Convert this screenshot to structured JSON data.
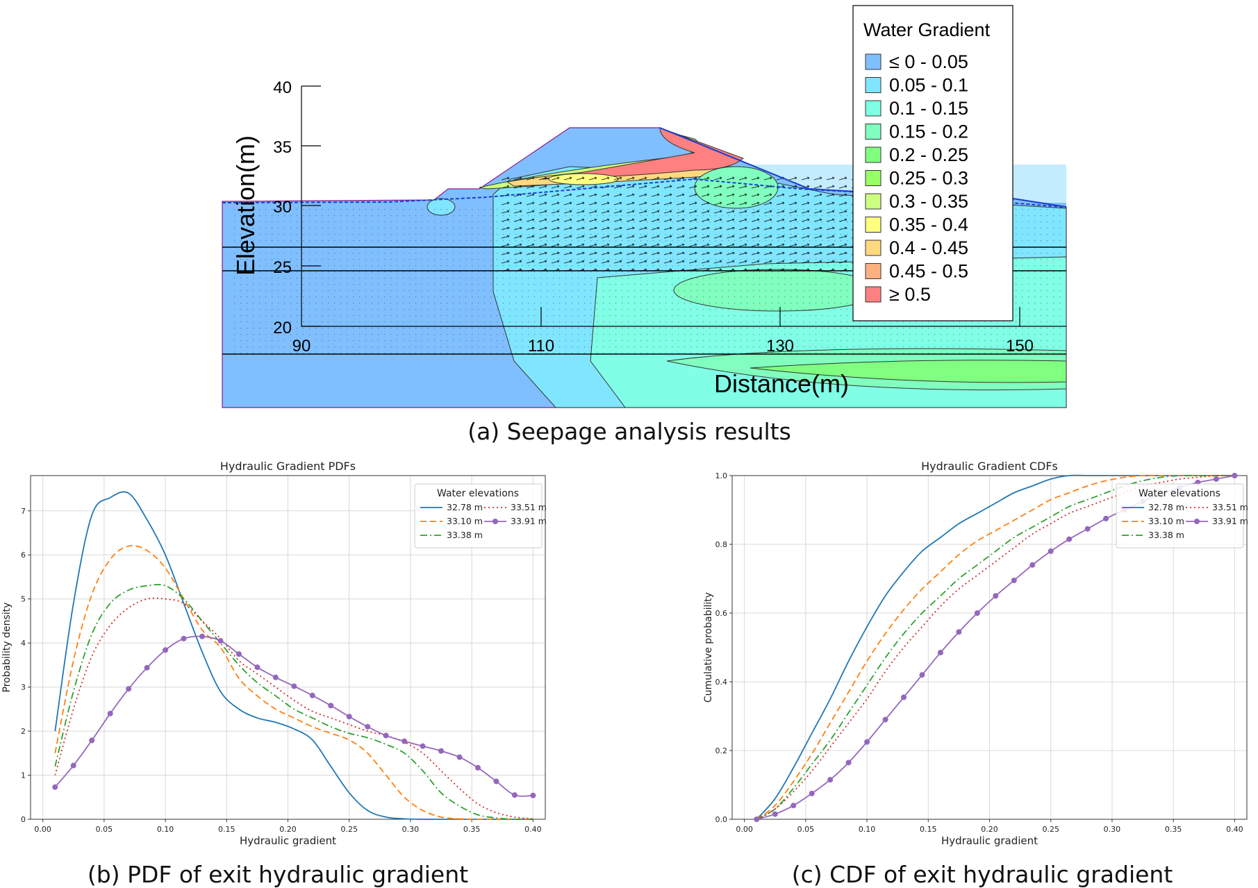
{
  "captions": {
    "a": "(a) Seepage analysis results",
    "b": "(b) PDF of exit hydraulic gradient",
    "c": "(c) CDF of exit hydraulic gradient"
  },
  "seepage": {
    "ylabel": "Elevation(m)",
    "xlabel": "Distance(m)",
    "yticks": [
      "40",
      "35",
      "30",
      "25",
      "20"
    ],
    "xticks": [
      "90",
      "110",
      "130",
      "150"
    ],
    "legend_title": "Water Gradient",
    "legend": [
      {
        "label": "≤ 0 - 0.05",
        "color": "#80bfff"
      },
      {
        "label": "0.05 - 0.1",
        "color": "#80e6ff"
      },
      {
        "label": "0.1 - 0.15",
        "color": "#80ffe6"
      },
      {
        "label": "0.15 - 0.2",
        "color": "#80ffbf"
      },
      {
        "label": "0.2 - 0.25",
        "color": "#80ff80"
      },
      {
        "label": "0.25 - 0.3",
        "color": "#99ff66"
      },
      {
        "label": "0.3 - 0.35",
        "color": "#ccff80"
      },
      {
        "label": "0.35 - 0.4",
        "color": "#ffff80"
      },
      {
        "label": "0.4 - 0.45",
        "color": "#ffd980"
      },
      {
        "label": "0.45 - 0.5",
        "color": "#ffb080"
      },
      {
        "label": "≥ 0.5",
        "color": "#ff8080"
      }
    ]
  },
  "chart_data": [
    {
      "type": "line",
      "title": "Hydraulic Gradient PDFs",
      "xlabel": "Hydraulic gradient",
      "ylabel": "Probability density",
      "xlim": [
        -0.01,
        0.41
      ],
      "ylim": [
        0,
        7.8
      ],
      "xticks": [
        "0.00",
        "0.05",
        "0.10",
        "0.15",
        "0.20",
        "0.25",
        "0.30",
        "0.35",
        "0.40"
      ],
      "yticks": [
        "0",
        "1",
        "2",
        "3",
        "4",
        "5",
        "6",
        "7"
      ],
      "legend_title": "Water elevations",
      "x": [
        0.01,
        0.025,
        0.04,
        0.055,
        0.07,
        0.085,
        0.1,
        0.115,
        0.13,
        0.145,
        0.16,
        0.175,
        0.19,
        0.205,
        0.22,
        0.235,
        0.25,
        0.265,
        0.28,
        0.295,
        0.31,
        0.325,
        0.34,
        0.355,
        0.37,
        0.385,
        0.4
      ],
      "series": [
        {
          "name": "32.78 m",
          "color": "#1f77b4",
          "dash": "",
          "marker": false,
          "values": [
            2.0,
            4.9,
            6.9,
            7.3,
            7.4,
            6.8,
            6.0,
            4.9,
            3.8,
            2.9,
            2.5,
            2.3,
            2.2,
            2.05,
            1.8,
            1.2,
            0.6,
            0.2,
            0.05,
            0.01,
            0,
            0,
            0,
            0,
            0,
            0,
            0
          ]
        },
        {
          "name": "33.10 m",
          "color": "#ff7f0e",
          "dash": "9,5",
          "marker": false,
          "values": [
            1.5,
            3.6,
            5.1,
            5.9,
            6.2,
            6.1,
            5.7,
            5.0,
            4.3,
            3.9,
            3.2,
            2.8,
            2.5,
            2.3,
            2.1,
            1.95,
            1.8,
            1.5,
            1.0,
            0.5,
            0.2,
            0.05,
            0.01,
            0,
            0,
            0,
            0
          ]
        },
        {
          "name": "33.38 m",
          "color": "#2ca02c",
          "dash": "10,4,2,4",
          "marker": false,
          "values": [
            1.2,
            2.9,
            4.2,
            4.9,
            5.2,
            5.3,
            5.3,
            5.0,
            4.5,
            4.0,
            3.5,
            3.1,
            2.8,
            2.5,
            2.3,
            2.1,
            1.95,
            1.85,
            1.7,
            1.5,
            1.1,
            0.6,
            0.3,
            0.1,
            0.03,
            0,
            0
          ]
        },
        {
          "name": "33.51 m",
          "color": "#d62728",
          "dash": "2,4",
          "marker": false,
          "values": [
            1.0,
            2.5,
            3.7,
            4.4,
            4.8,
            5.0,
            5.0,
            4.9,
            4.5,
            4.1,
            3.6,
            3.3,
            3.0,
            2.7,
            2.45,
            2.3,
            2.15,
            2.0,
            1.9,
            1.75,
            1.5,
            1.1,
            0.7,
            0.35,
            0.15,
            0.05,
            0.01
          ]
        },
        {
          "name": "33.91 m",
          "color": "#9467bd",
          "dash": "",
          "marker": true,
          "values": [
            0.73,
            1.22,
            1.79,
            2.4,
            2.96,
            3.44,
            3.84,
            4.1,
            4.15,
            4.05,
            3.75,
            3.45,
            3.22,
            3.02,
            2.81,
            2.58,
            2.33,
            2.1,
            1.9,
            1.77,
            1.66,
            1.55,
            1.41,
            1.17,
            0.86,
            0.55,
            0.54
          ]
        }
      ]
    },
    {
      "type": "line",
      "title": "Hydraulic Gradient CDFs",
      "xlabel": "Hydraulic gradient",
      "ylabel": "Cumulative probability",
      "xlim": [
        -0.01,
        0.41
      ],
      "ylim": [
        0,
        1.0
      ],
      "xticks": [
        "0.00",
        "0.05",
        "0.10",
        "0.15",
        "0.20",
        "0.25",
        "0.30",
        "0.35",
        "0.40"
      ],
      "yticks": [
        "0.0",
        "0.2",
        "0.4",
        "0.6",
        "0.8",
        "1.0"
      ],
      "legend_title": "Water elevations",
      "x": [
        0.01,
        0.025,
        0.04,
        0.055,
        0.07,
        0.085,
        0.1,
        0.115,
        0.13,
        0.145,
        0.16,
        0.175,
        0.19,
        0.205,
        0.22,
        0.235,
        0.25,
        0.265,
        0.28,
        0.295,
        0.31,
        0.325,
        0.34,
        0.355,
        0.37,
        0.385,
        0.4
      ],
      "series": [
        {
          "name": "32.78 m",
          "color": "#1f77b4",
          "dash": "",
          "marker": false,
          "values": [
            0.0,
            0.06,
            0.15,
            0.25,
            0.35,
            0.46,
            0.56,
            0.65,
            0.72,
            0.78,
            0.82,
            0.86,
            0.89,
            0.92,
            0.95,
            0.97,
            0.99,
            1.0,
            1.0,
            1.0,
            1.0,
            1.0,
            1.0,
            1.0,
            1.0,
            1.0,
            1.0
          ]
        },
        {
          "name": "33.10 m",
          "color": "#ff7f0e",
          "dash": "9,5",
          "marker": false,
          "values": [
            0.0,
            0.04,
            0.11,
            0.19,
            0.28,
            0.37,
            0.46,
            0.54,
            0.61,
            0.67,
            0.72,
            0.77,
            0.81,
            0.84,
            0.87,
            0.9,
            0.93,
            0.95,
            0.97,
            0.985,
            0.995,
            1.0,
            1.0,
            1.0,
            1.0,
            1.0,
            1.0
          ]
        },
        {
          "name": "33.38 m",
          "color": "#2ca02c",
          "dash": "10,4,2,4",
          "marker": false,
          "values": [
            0.0,
            0.03,
            0.09,
            0.16,
            0.23,
            0.31,
            0.39,
            0.47,
            0.54,
            0.6,
            0.65,
            0.7,
            0.74,
            0.78,
            0.82,
            0.85,
            0.88,
            0.91,
            0.93,
            0.95,
            0.97,
            0.985,
            0.995,
            1.0,
            1.0,
            1.0,
            1.0
          ]
        },
        {
          "name": "33.51 m",
          "color": "#d62728",
          "dash": "2,4",
          "marker": false,
          "values": [
            0.0,
            0.03,
            0.08,
            0.14,
            0.21,
            0.28,
            0.35,
            0.43,
            0.5,
            0.56,
            0.62,
            0.67,
            0.71,
            0.75,
            0.79,
            0.83,
            0.86,
            0.89,
            0.91,
            0.93,
            0.95,
            0.97,
            0.98,
            0.99,
            0.995,
            1.0,
            1.0
          ]
        },
        {
          "name": "33.91 m",
          "color": "#9467bd",
          "dash": "",
          "marker": true,
          "values": [
            0.0,
            0.015,
            0.04,
            0.075,
            0.115,
            0.165,
            0.225,
            0.29,
            0.355,
            0.42,
            0.485,
            0.545,
            0.6,
            0.65,
            0.695,
            0.74,
            0.78,
            0.815,
            0.845,
            0.875,
            0.9,
            0.925,
            0.945,
            0.965,
            0.98,
            0.99,
            1.0
          ]
        }
      ]
    }
  ]
}
